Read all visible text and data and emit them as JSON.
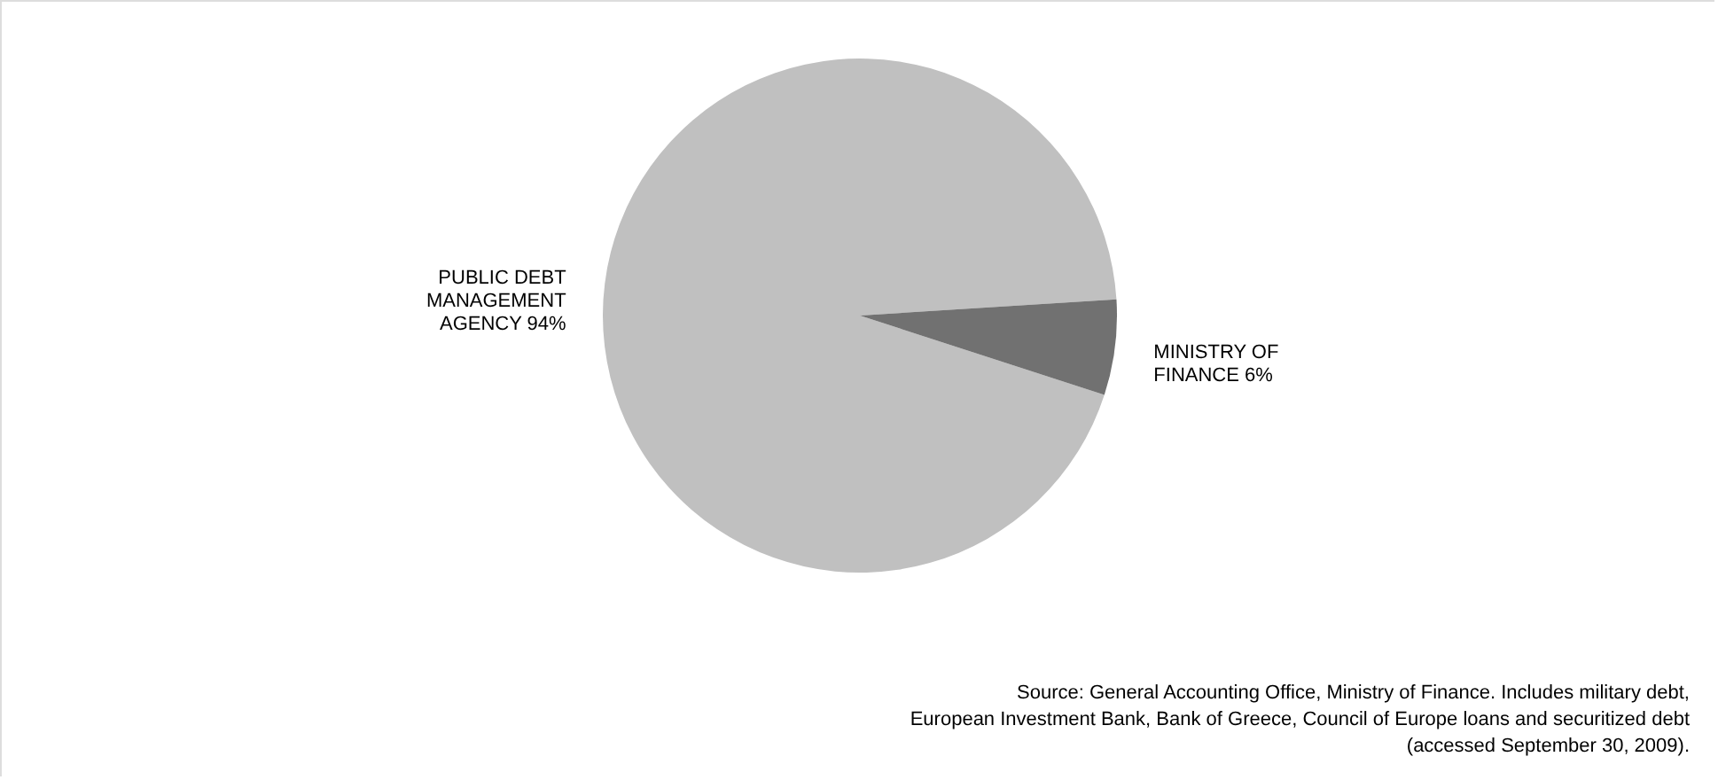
{
  "chart_data": {
    "type": "pie",
    "categories": [
      "PUBLIC DEBT MANAGEMENT AGENCY",
      "MINISTRY OF FINANCE"
    ],
    "values": [
      94,
      6
    ],
    "colors": [
      "#c0c0c0",
      "#717171"
    ],
    "value_labels": [
      "94%",
      "6%"
    ],
    "legend": false,
    "annotations": [
      "Source: General Accounting Office, Ministry of Finance. Includes military debt,\nEuropean Investment Bank, Bank of Greece, Council of Europe loans and securitized debt\n(accessed September 30, 2009)."
    ]
  }
}
